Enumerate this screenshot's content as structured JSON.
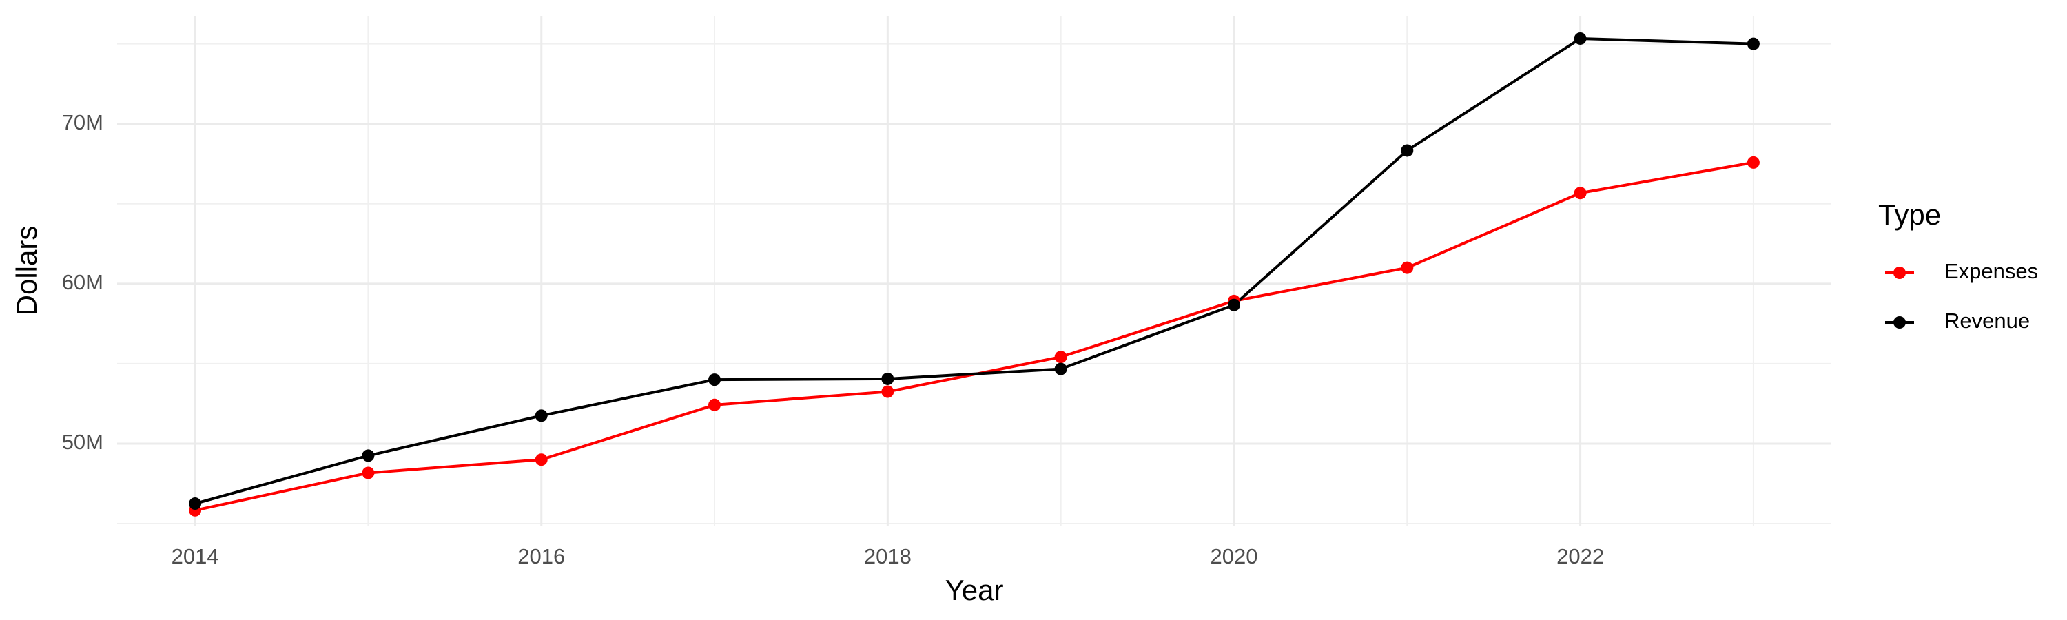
{
  "chart_data": {
    "type": "line",
    "x_label": "Year",
    "y_label": "Dollars",
    "legend_title": "Type",
    "legend_position": "right",
    "grid": true,
    "x": [
      2014,
      2015,
      2016,
      2017,
      2018,
      2019,
      2020,
      2021,
      2022,
      2023
    ],
    "series": [
      {
        "name": "Expenses",
        "color": "#ff0000",
        "values": [
          45830000,
          48170000,
          49000000,
          52420000,
          53250000,
          55420000,
          58920000,
          61000000,
          65670000,
          67580000
        ]
      },
      {
        "name": "Revenue",
        "color": "#000000",
        "values": [
          46250000,
          49250000,
          51750000,
          54000000,
          54050000,
          54670000,
          58670000,
          68330000,
          75330000,
          75000000
        ]
      }
    ],
    "xlim": [
      2013.55,
      2023.45
    ],
    "xticks": [
      2014,
      2016,
      2018,
      2020,
      2022
    ],
    "ylim": [
      44830000,
      76750000
    ],
    "yticks": [
      {
        "value": 50000000,
        "label": "50M"
      },
      {
        "value": 60000000,
        "label": "60M"
      },
      {
        "value": 70000000,
        "label": "70M"
      }
    ]
  }
}
